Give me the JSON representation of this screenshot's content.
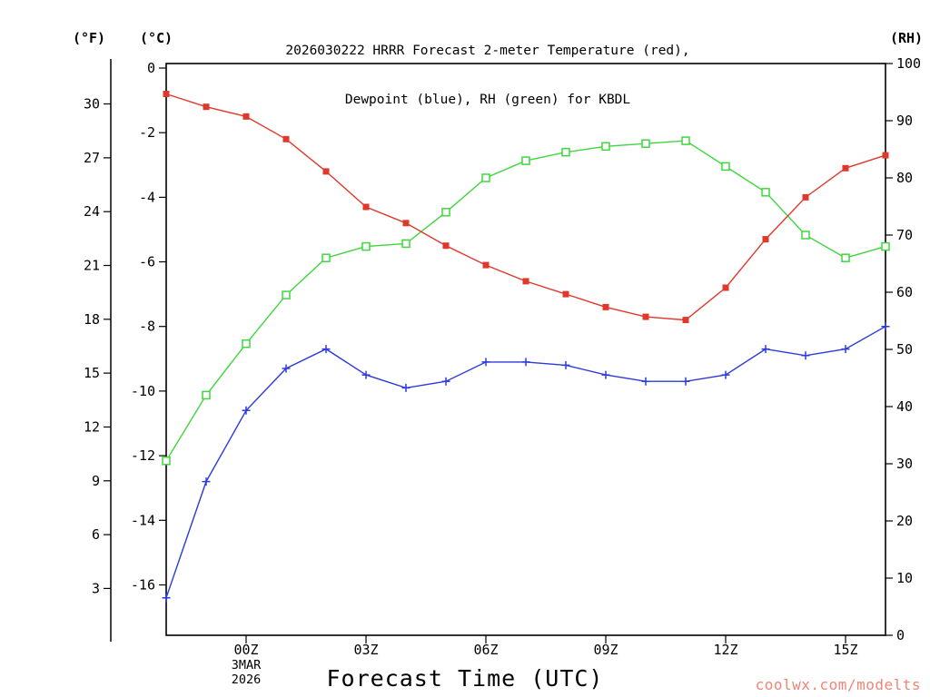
{
  "page": {
    "title_line1": "2026030222 HRRR Forecast 2-meter Temperature (red),",
    "title_line2": "Dewpoint (blue), RH (green) for KBDL",
    "left_outer_axis_unit": "(°F)",
    "left_inner_axis_unit": "(°C)",
    "right_axis_unit": "(RH)",
    "xlabel": "Forecast Time (UTC)",
    "watermark": "coolwx.com/modelts"
  },
  "colors": {
    "temperature": "#e0382b",
    "dewpoint": "#2b3bdb",
    "rh": "#3fd63f",
    "watermark": "#f08575",
    "axis": "#000000"
  },
  "chart_data": {
    "type": "line",
    "title": "2026030222 HRRR Forecast 2-meter Temperature (red), Dewpoint (blue), RH (green) for KBDL",
    "station": "KBDL",
    "model": "HRRR",
    "run": "2026030222",
    "xlabel": "Forecast Time (UTC)",
    "x_hours_utc": [
      "22Z",
      "23Z",
      "00Z",
      "01Z",
      "02Z",
      "03Z",
      "04Z",
      "05Z",
      "06Z",
      "07Z",
      "08Z",
      "09Z",
      "10Z",
      "11Z",
      "12Z",
      "13Z",
      "14Z",
      "15Z",
      "16Z"
    ],
    "x_tick_labels": [
      "00Z",
      "03Z",
      "06Z",
      "09Z",
      "12Z",
      "15Z"
    ],
    "x_tick_indices": [
      2,
      5,
      8,
      11,
      14,
      17
    ],
    "x_date_label": {
      "index": 2,
      "lines": [
        "3MAR",
        "2026"
      ]
    },
    "celsius_axis": {
      "min": -17.56,
      "max": 0.14,
      "tick_values": [
        0,
        -2,
        -4,
        -6,
        -8,
        -10,
        -12,
        -14,
        -16
      ]
    },
    "fahrenheit_tick_values": [
      30,
      27,
      24,
      21,
      18,
      15,
      12,
      9,
      6,
      3
    ],
    "rh_axis": {
      "min": 0,
      "max": 100,
      "tick_values": [
        0,
        10,
        20,
        30,
        40,
        50,
        60,
        70,
        80,
        90,
        100
      ]
    },
    "series": [
      {
        "name": "Relative Humidity",
        "unit": "%",
        "axis": "rh",
        "color_key": "rh",
        "marker": "open-square",
        "values": [
          30.5,
          42,
          51,
          59.5,
          66,
          68,
          68.5,
          74,
          80,
          83,
          84.5,
          85.5,
          86,
          86.5,
          82,
          77.5,
          70,
          66,
          68
        ]
      },
      {
        "name": "2-meter Temperature",
        "unit": "°C",
        "axis": "celsius",
        "color_key": "temperature",
        "marker": "filled-square",
        "values": [
          -0.8,
          -1.2,
          -1.5,
          -2.2,
          -3.2,
          -4.3,
          -4.8,
          -5.5,
          -6.1,
          -6.6,
          -7.0,
          -7.4,
          -7.7,
          -7.8,
          -6.8,
          -5.3,
          -4.0,
          -3.1,
          -2.7
        ]
      },
      {
        "name": "Dewpoint",
        "unit": "°C",
        "axis": "celsius",
        "color_key": "dewpoint",
        "marker": "plus",
        "values": [
          -16.4,
          -12.8,
          -10.6,
          -9.3,
          -8.7,
          -9.5,
          -9.9,
          -9.7,
          -9.1,
          -9.1,
          -9.2,
          -9.5,
          -9.7,
          -9.7,
          -9.5,
          -8.7,
          -8.9,
          -8.7,
          -8.0
        ]
      }
    ]
  }
}
